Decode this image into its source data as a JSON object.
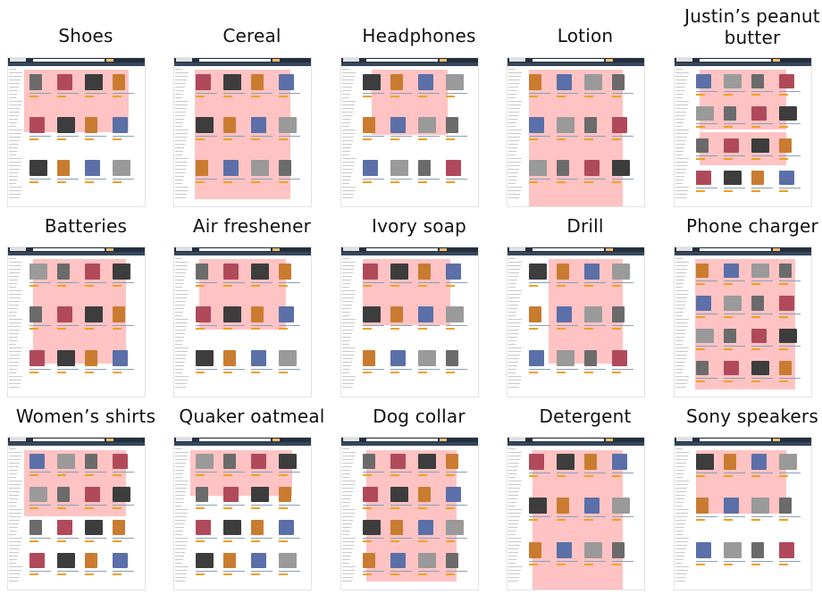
{
  "panels": [
    {
      "title": "Shoes"
    },
    {
      "title": "Cereal"
    },
    {
      "title": "Headphones"
    },
    {
      "title": "Lotion"
    },
    {
      "title": "Justin’s peanut\nbutter"
    },
    {
      "title": "Batteries"
    },
    {
      "title": "Air freshener"
    },
    {
      "title": "Ivory soap"
    },
    {
      "title": "Drill"
    },
    {
      "title": "Phone charger"
    },
    {
      "title": "Women’s shirts"
    },
    {
      "title": "Quaker oatmeal"
    },
    {
      "title": "Dog collar"
    },
    {
      "title": "Detergent"
    },
    {
      "title": "Sony speakers"
    }
  ],
  "colors": {
    "highlight": "#ff9191",
    "nav": "#232f3e",
    "nav2": "#37475a",
    "search_button": "#febd69",
    "stars": "#f0a020"
  }
}
